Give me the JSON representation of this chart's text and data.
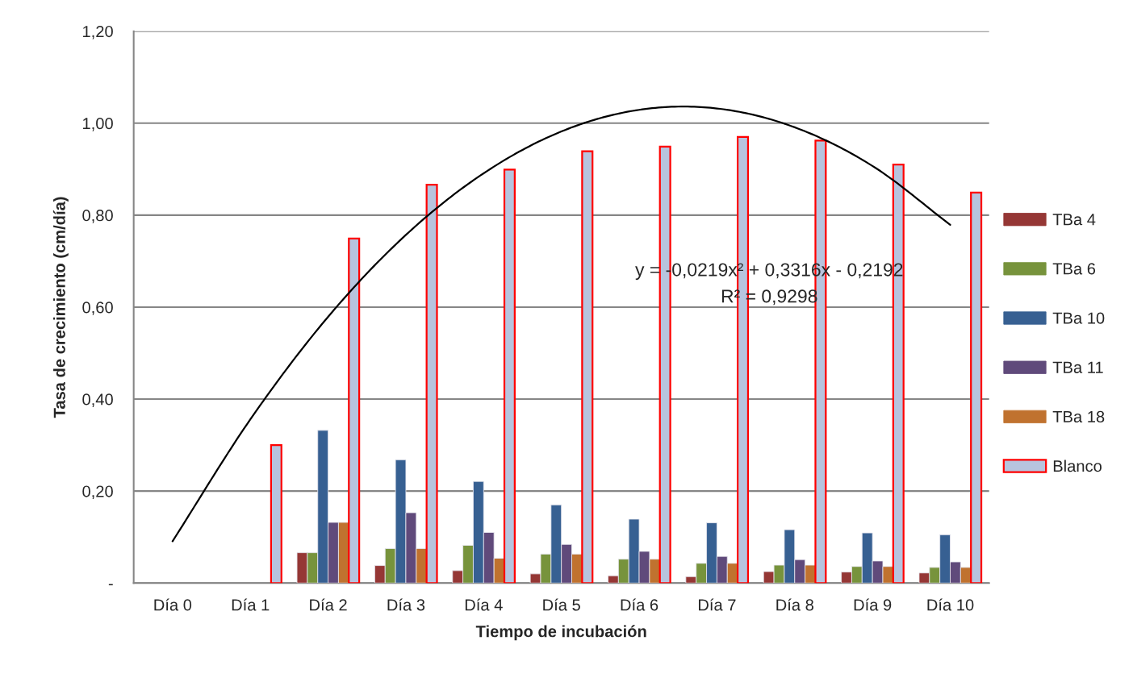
{
  "chart_data": {
    "type": "bar",
    "xlabel": "Tiempo de incubación",
    "ylabel": "Tasa de crecimiento (cm/día)",
    "categories": [
      "Día 0",
      "Día 1",
      "Día 2",
      "Día 3",
      "Día 4",
      "Día 5",
      "Día 6",
      "Día 7",
      "Día 8",
      "Día 9",
      "Día 10"
    ],
    "series": [
      {
        "name": "TBa 4",
        "color": "#953735",
        "values": [
          null,
          null,
          0.066,
          0.038,
          0.027,
          0.02,
          0.016,
          0.014,
          0.025,
          0.024,
          0.022
        ]
      },
      {
        "name": "TBa 6",
        "color": "#77933c",
        "values": [
          null,
          null,
          0.066,
          0.075,
          0.082,
          0.063,
          0.052,
          0.043,
          0.039,
          0.036,
          0.034
        ]
      },
      {
        "name": "TBa 10",
        "color": "#376092",
        "values": [
          null,
          null,
          0.332,
          0.268,
          0.221,
          0.17,
          0.139,
          0.131,
          0.116,
          0.109,
          0.105
        ]
      },
      {
        "name": "TBa 11",
        "color": "#604a7b",
        "values": [
          null,
          null,
          0.132,
          0.153,
          0.11,
          0.084,
          0.069,
          0.058,
          0.051,
          0.048,
          0.046
        ]
      },
      {
        "name": "TBa 18",
        "color": "#c0722f",
        "values": [
          null,
          null,
          0.132,
          0.075,
          0.054,
          0.063,
          0.052,
          0.043,
          0.039,
          0.036,
          0.034
        ]
      },
      {
        "name": "Blanco",
        "color": "#b7c4de",
        "values": [
          null,
          0.3,
          0.749,
          0.866,
          0.899,
          0.939,
          0.949,
          0.97,
          0.962,
          0.91,
          0.849
        ]
      },
      {
        "type": "line",
        "color": "#000000",
        "values": [
          0.091,
          0.356,
          0.579,
          0.757,
          0.891,
          0.982,
          1.029,
          1.032,
          0.991,
          0.907,
          0.779
        ]
      }
    ],
    "annotations": [
      "y = -0,0219x² + 0,3316x - 0,2192",
      "R² = 0,9298"
    ],
    "ylim": [
      0,
      1.2
    ],
    "yticks": [
      {
        "value": 0,
        "label": "-"
      },
      {
        "value": 0.2,
        "label": "0,20"
      },
      {
        "value": 0.4,
        "label": "0,40"
      },
      {
        "value": 0.6,
        "label": "0,60"
      },
      {
        "value": 0.8,
        "label": "0,80"
      },
      {
        "value": 1.0,
        "label": "1,00"
      },
      {
        "value": 1.2,
        "label": "1,20"
      }
    ],
    "grid": "y",
    "legend": "right"
  }
}
